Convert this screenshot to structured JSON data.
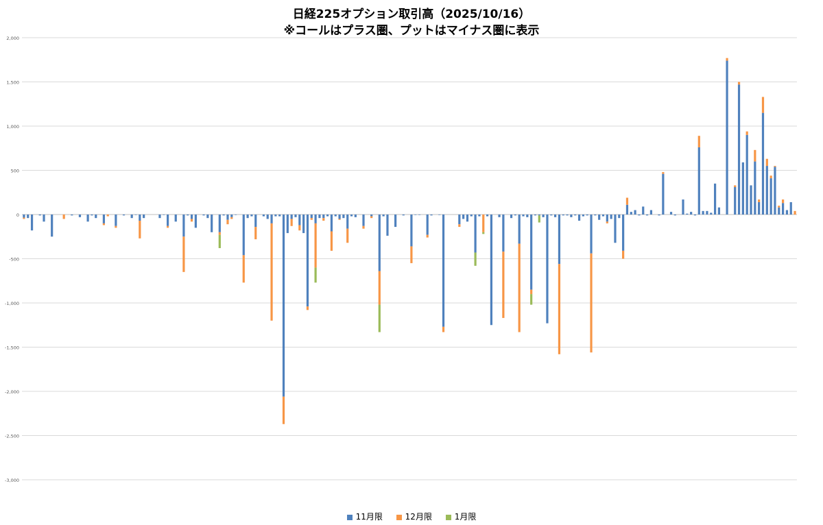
{
  "chart_data": {
    "type": "bar",
    "stacked": true,
    "title": "日経225オプション取引高（2025/10/16）",
    "subtitle": "※コールはプラス圏、プットはマイナス圏に表示",
    "ylim": [
      -3000,
      2000
    ],
    "yticks": [
      -3000,
      -2500,
      -2000,
      -1500,
      -1000,
      -500,
      0,
      500,
      1000,
      1500,
      2000
    ],
    "ytick_labels": [
      "-3,000",
      "-2,500",
      "-2,000",
      "-1,500",
      "-1,000",
      "-500",
      "0",
      "500",
      "1,000",
      "1,500",
      "2,000"
    ],
    "grid": true,
    "legend_position": "bottom",
    "series": [
      {
        "name": "11月限",
        "color": "#4f81bd"
      },
      {
        "name": "12月限",
        "color": "#f79646"
      },
      {
        "name": "1月限",
        "color": "#9bbb59"
      }
    ],
    "bars": [
      [
        -35,
        -15,
        0
      ],
      [
        -40,
        0,
        0
      ],
      [
        -180,
        0,
        0
      ],
      [
        0,
        0,
        0
      ],
      [
        -10,
        0,
        0
      ],
      [
        -80,
        0,
        0
      ],
      [
        0,
        0,
        0
      ],
      [
        -250,
        0,
        0
      ],
      [
        0,
        0,
        0
      ],
      [
        0,
        0,
        0
      ],
      [
        0,
        -50,
        0
      ],
      [
        0,
        0,
        0
      ],
      [
        -10,
        0,
        0
      ],
      [
        0,
        0,
        0
      ],
      [
        -30,
        0,
        0
      ],
      [
        0,
        0,
        0
      ],
      [
        -80,
        0,
        0
      ],
      [
        -10,
        0,
        0
      ],
      [
        -40,
        0,
        0
      ],
      [
        0,
        0,
        0
      ],
      [
        -100,
        -20,
        0
      ],
      [
        0,
        -20,
        0
      ],
      [
        0,
        0,
        0
      ],
      [
        -130,
        -20,
        0
      ],
      [
        0,
        0,
        0
      ],
      [
        -10,
        0,
        0
      ],
      [
        0,
        0,
        0
      ],
      [
        -40,
        0,
        0
      ],
      [
        -5,
        0,
        0
      ],
      [
        -70,
        -200,
        0
      ],
      [
        -40,
        0,
        0
      ],
      [
        0,
        0,
        0
      ],
      [
        0,
        0,
        0
      ],
      [
        0,
        0,
        0
      ],
      [
        -40,
        0,
        0
      ],
      [
        -5,
        0,
        0
      ],
      [
        -130,
        -20,
        0
      ],
      [
        0,
        0,
        0
      ],
      [
        -80,
        0,
        0
      ],
      [
        0,
        0,
        0
      ],
      [
        -250,
        -400,
        0
      ],
      [
        -10,
        0,
        0
      ],
      [
        -50,
        -30,
        0
      ],
      [
        -150,
        0,
        0
      ],
      [
        0,
        0,
        0
      ],
      [
        -10,
        0,
        0
      ],
      [
        -40,
        0,
        0
      ],
      [
        -200,
        0,
        0
      ],
      [
        0,
        0,
        0
      ],
      [
        -200,
        -30,
        -150
      ],
      [
        -10,
        0,
        0
      ],
      [
        -60,
        -50,
        0
      ],
      [
        -30,
        -20,
        0
      ],
      [
        -5,
        0,
        0
      ],
      [
        0,
        0,
        0
      ],
      [
        -460,
        -310,
        0
      ],
      [
        -40,
        0,
        0
      ],
      [
        -20,
        0,
        0
      ],
      [
        -140,
        -140,
        0
      ],
      [
        0,
        0,
        0
      ],
      [
        -20,
        0,
        0
      ],
      [
        -50,
        0,
        0
      ],
      [
        -100,
        -1100,
        0
      ],
      [
        -20,
        0,
        0
      ],
      [
        -20,
        0,
        0
      ],
      [
        -2060,
        -310,
        0
      ],
      [
        -210,
        0,
        0
      ],
      [
        -50,
        -80,
        0
      ],
      [
        -30,
        0,
        0
      ],
      [
        -120,
        -60,
        0
      ],
      [
        -210,
        0,
        0
      ],
      [
        -1040,
        -40,
        0
      ],
      [
        -40,
        -20,
        0
      ],
      [
        -100,
        -500,
        -170
      ],
      [
        -40,
        0,
        0
      ],
      [
        -40,
        -30,
        0
      ],
      [
        -20,
        0,
        0
      ],
      [
        -190,
        -220,
        0
      ],
      [
        -20,
        0,
        0
      ],
      [
        -50,
        -10,
        0
      ],
      [
        -40,
        0,
        0
      ],
      [
        -160,
        -160,
        0
      ],
      [
        -20,
        0,
        0
      ],
      [
        -30,
        0,
        0
      ],
      [
        0,
        0,
        0
      ],
      [
        -130,
        -30,
        0
      ],
      [
        0,
        0,
        0
      ],
      [
        -20,
        -20,
        0
      ],
      [
        0,
        0,
        0
      ],
      [
        -640,
        -380,
        -310
      ],
      [
        -20,
        0,
        0
      ],
      [
        -240,
        0,
        0
      ],
      [
        0,
        0,
        0
      ],
      [
        -140,
        0,
        0
      ],
      [
        0,
        0,
        0
      ],
      [
        -10,
        0,
        0
      ],
      [
        0,
        0,
        0
      ],
      [
        -360,
        -190,
        0
      ],
      [
        -5,
        0,
        0
      ],
      [
        -5,
        0,
        0
      ],
      [
        0,
        0,
        0
      ],
      [
        -230,
        -30,
        0
      ],
      [
        -10,
        0,
        0
      ],
      [
        0,
        0,
        0
      ],
      [
        -5,
        0,
        0
      ],
      [
        -1270,
        -60,
        0
      ],
      [
        0,
        0,
        0
      ],
      [
        0,
        0,
        0
      ],
      [
        0,
        0,
        0
      ],
      [
        -110,
        -30,
        0
      ],
      [
        -50,
        0,
        0
      ],
      [
        -80,
        0,
        0
      ],
      [
        -20,
        0,
        0
      ],
      [
        -430,
        0,
        -150
      ],
      [
        -20,
        0,
        0
      ],
      [
        0,
        -200,
        -20
      ],
      [
        -20,
        0,
        0
      ],
      [
        -1250,
        0,
        0
      ],
      [
        0,
        0,
        0
      ],
      [
        -30,
        0,
        0
      ],
      [
        -420,
        -750,
        0
      ],
      [
        0,
        0,
        0
      ],
      [
        -40,
        0,
        0
      ],
      [
        -10,
        0,
        0
      ],
      [
        -330,
        -1000,
        0
      ],
      [
        -20,
        0,
        0
      ],
      [
        -30,
        0,
        0
      ],
      [
        -850,
        -50,
        -120
      ],
      [
        -10,
        0,
        0
      ],
      [
        -10,
        0,
        -80
      ],
      [
        -30,
        0,
        0
      ],
      [
        -1230,
        0,
        0
      ],
      [
        -10,
        0,
        0
      ],
      [
        -30,
        0,
        0
      ],
      [
        -560,
        -1020,
        0
      ],
      [
        -10,
        0,
        0
      ],
      [
        -10,
        0,
        0
      ],
      [
        -30,
        0,
        0
      ],
      [
        -10,
        0,
        0
      ],
      [
        -70,
        0,
        0
      ],
      [
        -20,
        0,
        0
      ],
      [
        -10,
        0,
        0
      ],
      [
        -440,
        -1120,
        0
      ],
      [
        -10,
        0,
        0
      ],
      [
        -60,
        0,
        0
      ],
      [
        -20,
        0,
        0
      ],
      [
        -80,
        -20,
        0
      ],
      [
        -50,
        0,
        0
      ],
      [
        -320,
        0,
        0
      ],
      [
        -40,
        0,
        0
      ],
      [
        -410,
        -90,
        0
      ],
      [
        110,
        80,
        0
      ],
      [
        30,
        0,
        0
      ],
      [
        50,
        0,
        0
      ],
      [
        -10,
        0,
        0
      ],
      [
        90,
        0,
        0
      ],
      [
        -10,
        0,
        0
      ],
      [
        50,
        0,
        0
      ],
      [
        0,
        0,
        0
      ],
      [
        -10,
        0,
        0
      ],
      [
        460,
        20,
        0
      ],
      [
        0,
        0,
        0
      ],
      [
        30,
        0,
        0
      ],
      [
        -10,
        0,
        0
      ],
      [
        0,
        0,
        0
      ],
      [
        170,
        0,
        0
      ],
      [
        10,
        0,
        0
      ],
      [
        30,
        0,
        0
      ],
      [
        -10,
        0,
        0
      ],
      [
        760,
        130,
        0
      ],
      [
        40,
        0,
        0
      ],
      [
        40,
        0,
        0
      ],
      [
        20,
        0,
        0
      ],
      [
        350,
        0,
        0
      ],
      [
        80,
        0,
        0
      ],
      [
        0,
        0,
        0
      ],
      [
        1740,
        30,
        0
      ],
      [
        0,
        0,
        0
      ],
      [
        310,
        20,
        0
      ],
      [
        1470,
        30,
        0
      ],
      [
        590,
        0,
        0
      ],
      [
        900,
        40,
        0
      ],
      [
        330,
        0,
        0
      ],
      [
        600,
        130,
        0
      ],
      [
        140,
        30,
        0
      ],
      [
        1150,
        180,
        0
      ],
      [
        550,
        80,
        0
      ],
      [
        410,
        30,
        0
      ],
      [
        540,
        10,
        0
      ],
      [
        80,
        20,
        0
      ],
      [
        130,
        40,
        0
      ],
      [
        50,
        0,
        0
      ],
      [
        140,
        0,
        0
      ],
      [
        0,
        40,
        0
      ]
    ]
  }
}
